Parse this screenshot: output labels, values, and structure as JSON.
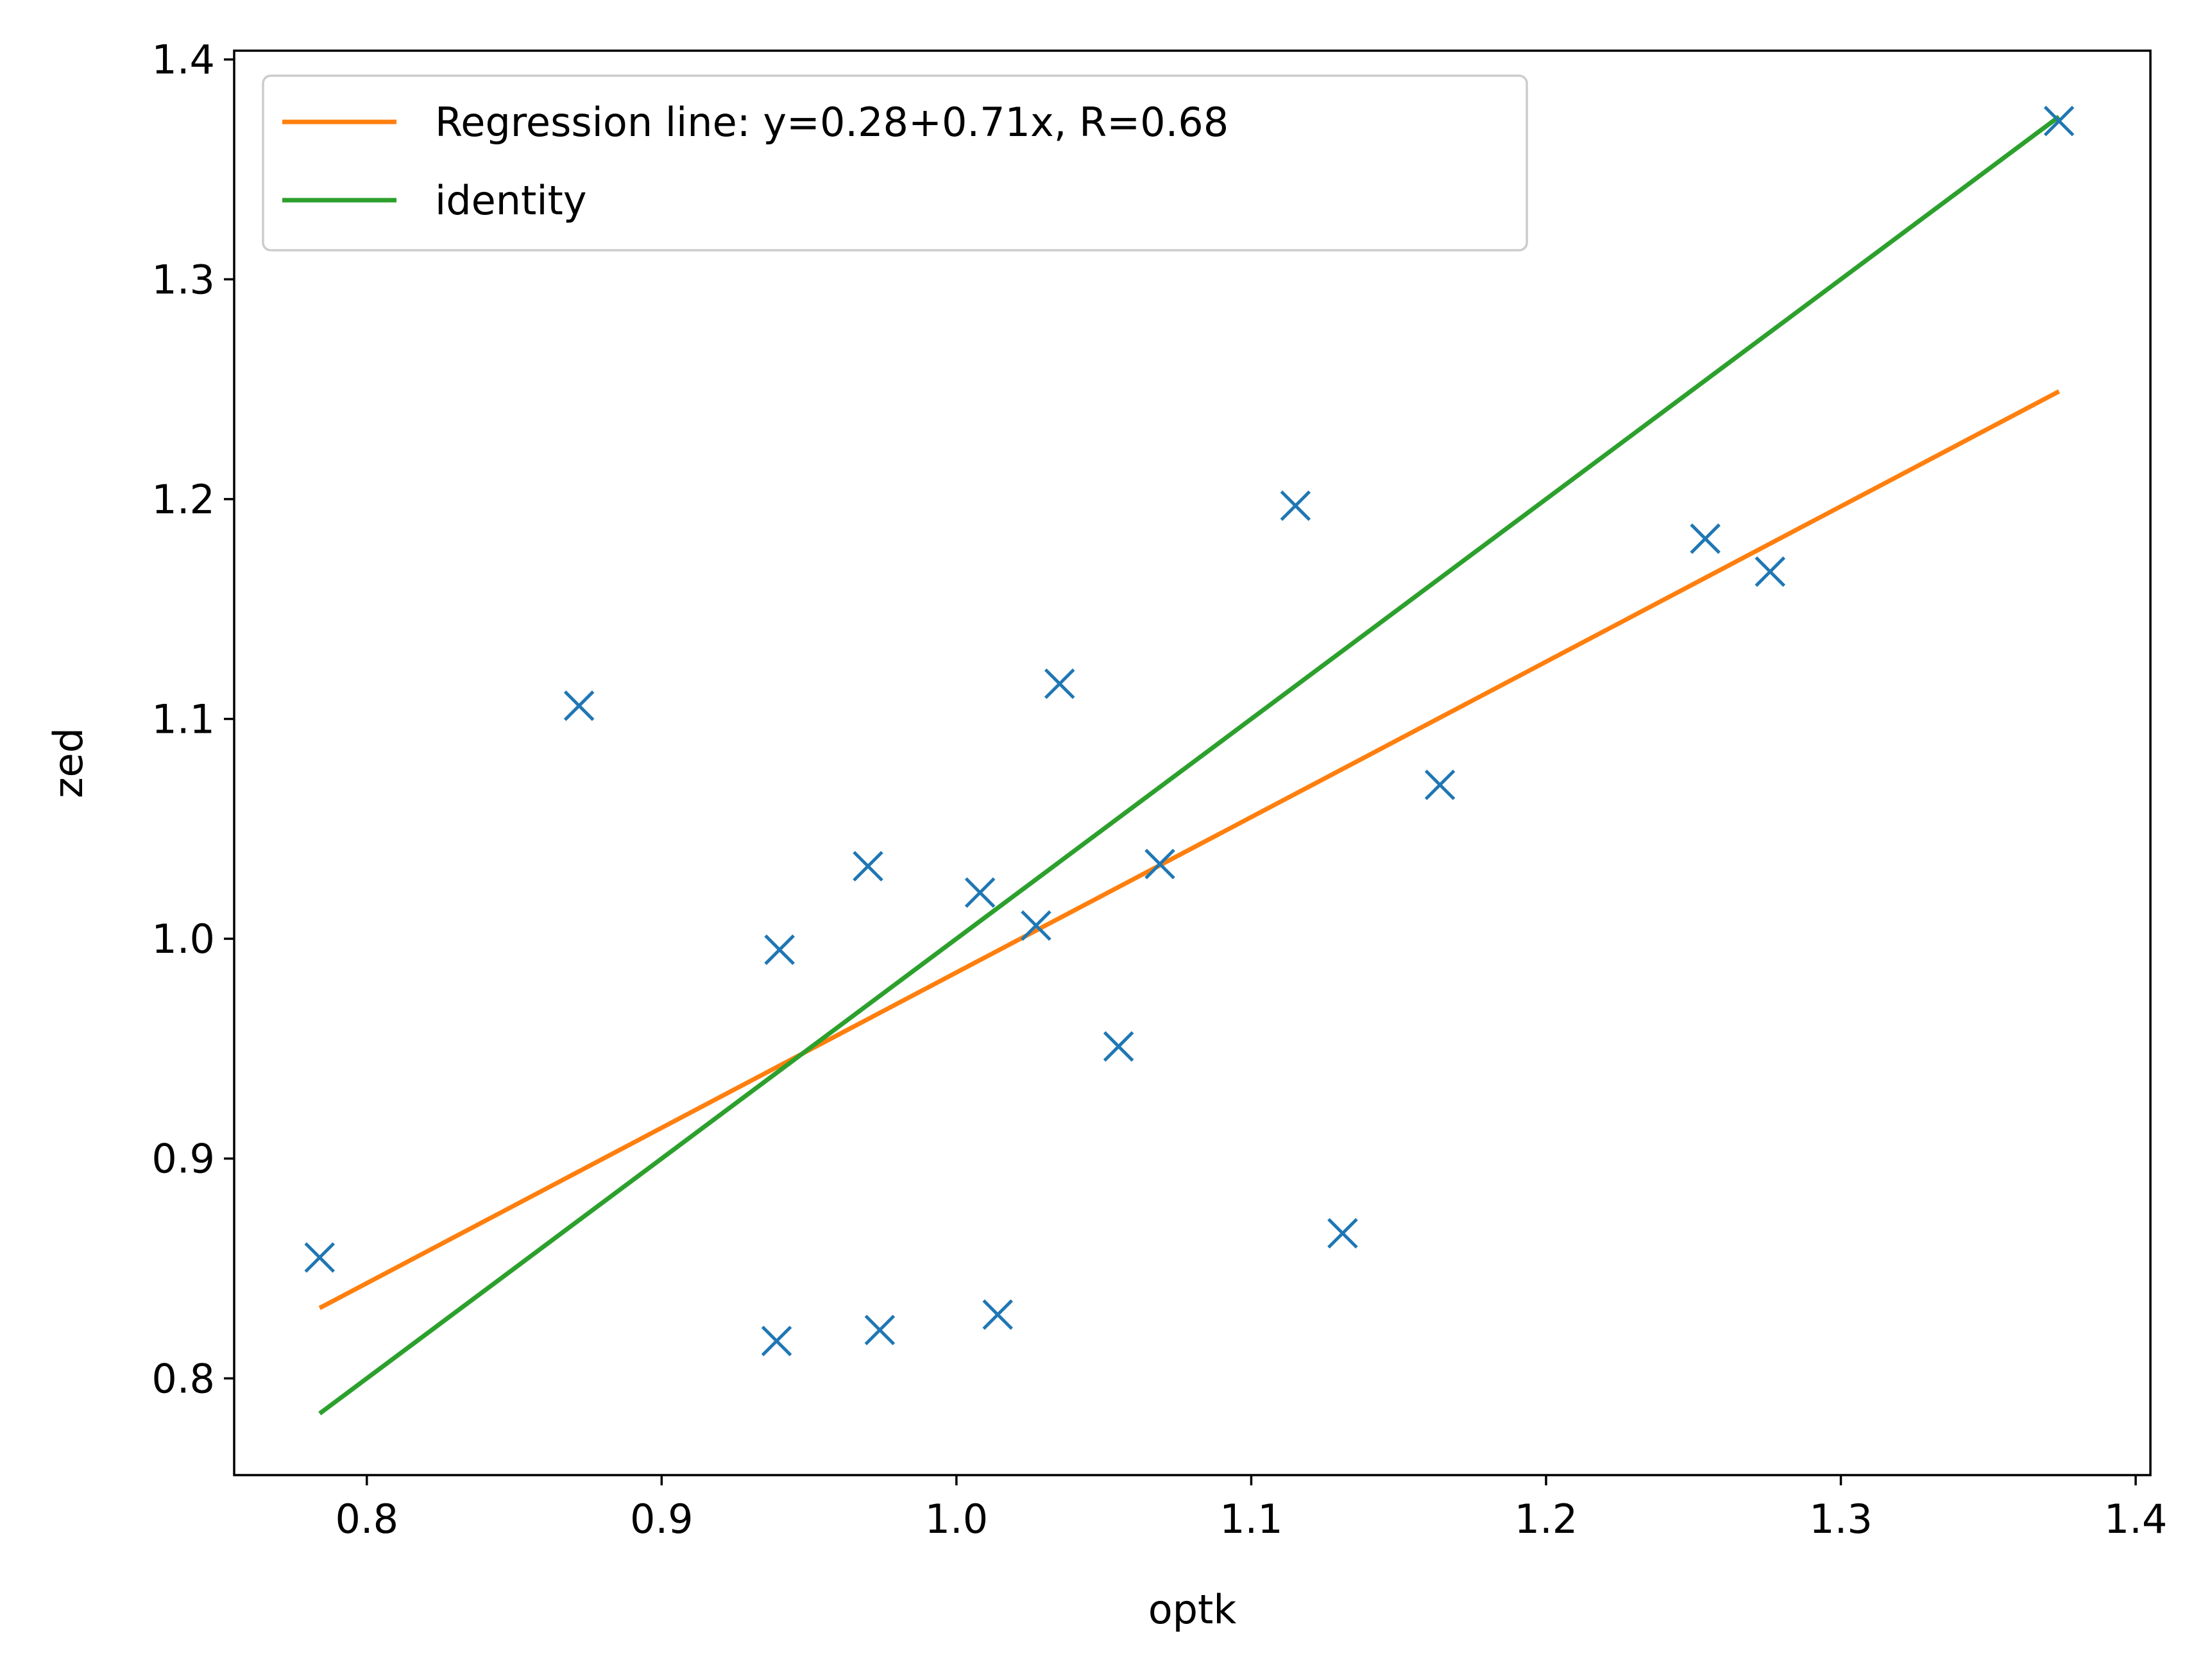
{
  "chart_data": {
    "type": "scatter",
    "title": "",
    "xlabel": "optk",
    "ylabel": "zed",
    "xlim": [
      0.755,
      1.405
    ],
    "ylim": [
      0.756,
      1.404
    ],
    "xticks": [
      "0.8",
      "0.9",
      "1.0",
      "1.1",
      "1.2",
      "1.3",
      "1.4"
    ],
    "yticks": [
      "0.8",
      "0.9",
      "1.0",
      "1.1",
      "1.2",
      "1.3",
      "1.4"
    ],
    "grid": false,
    "legend_position": "upper-left",
    "series": [
      {
        "kind": "scatter",
        "marker": "x",
        "color": "#1f77b4",
        "x": [
          0.784,
          0.872,
          0.939,
          0.94,
          0.97,
          0.974,
          1.008,
          1.014,
          1.027,
          1.035,
          1.055,
          1.069,
          1.115,
          1.131,
          1.164,
          1.254,
          1.276,
          1.374
        ],
        "y": [
          0.855,
          1.106,
          0.817,
          0.995,
          1.033,
          0.822,
          1.021,
          0.829,
          1.006,
          1.116,
          0.951,
          1.034,
          1.197,
          0.866,
          1.07,
          1.182,
          1.167,
          1.372
        ]
      },
      {
        "name": "Regression line: y=0.28+0.71x, R=0.68",
        "kind": "line",
        "color": "#ff7f0e",
        "x": [
          0.784,
          1.374
        ],
        "y": [
          0.832,
          1.249
        ]
      },
      {
        "name": "identity",
        "kind": "line",
        "color": "#2ca02c",
        "x": [
          0.784,
          1.374
        ],
        "y": [
          0.784,
          1.374
        ]
      }
    ]
  }
}
